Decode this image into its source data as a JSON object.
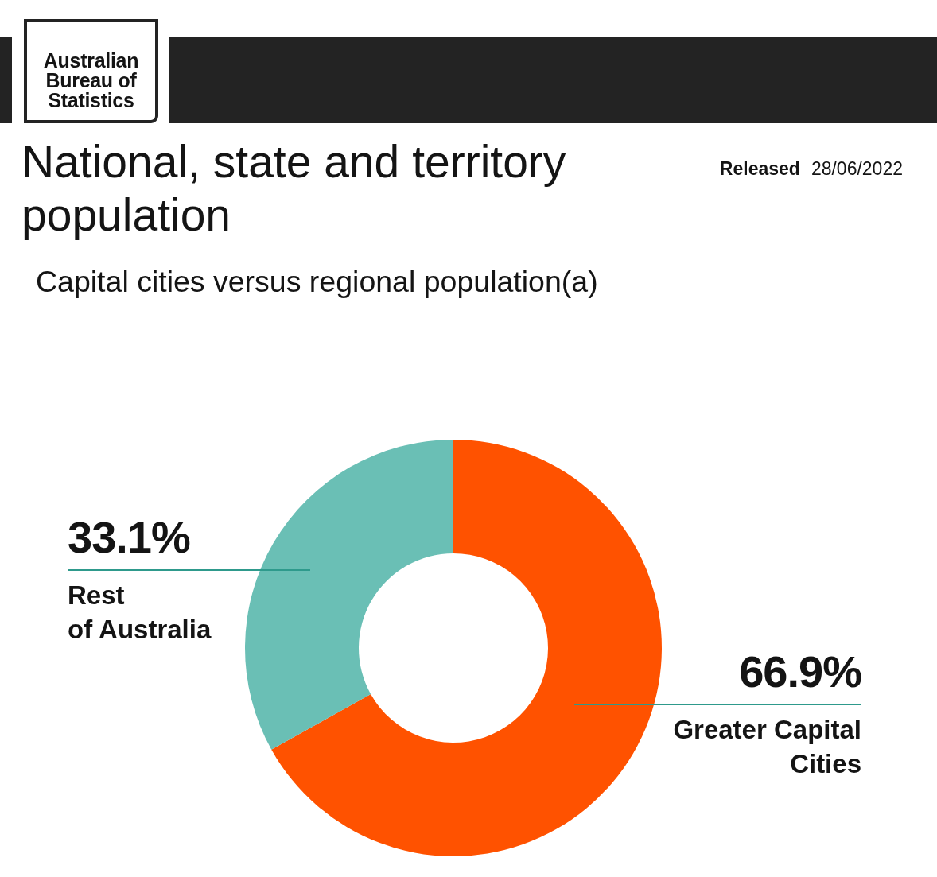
{
  "chart_data": {
    "type": "donut",
    "title": "National, state and territory population",
    "subtitle": "Capital cities versus regional population(a)",
    "annotations": [
      "Australian Bureau of Statistics",
      "Released",
      "28/06/2022"
    ],
    "categories": [
      "Greater Capital\nCities",
      "Rest\nof Australia"
    ],
    "values": [
      66.9,
      33.1
    ],
    "colors": [
      "#ff5200",
      "#6abfb5"
    ],
    "value_labels": [
      "66.9%",
      "33.1%"
    ]
  }
}
